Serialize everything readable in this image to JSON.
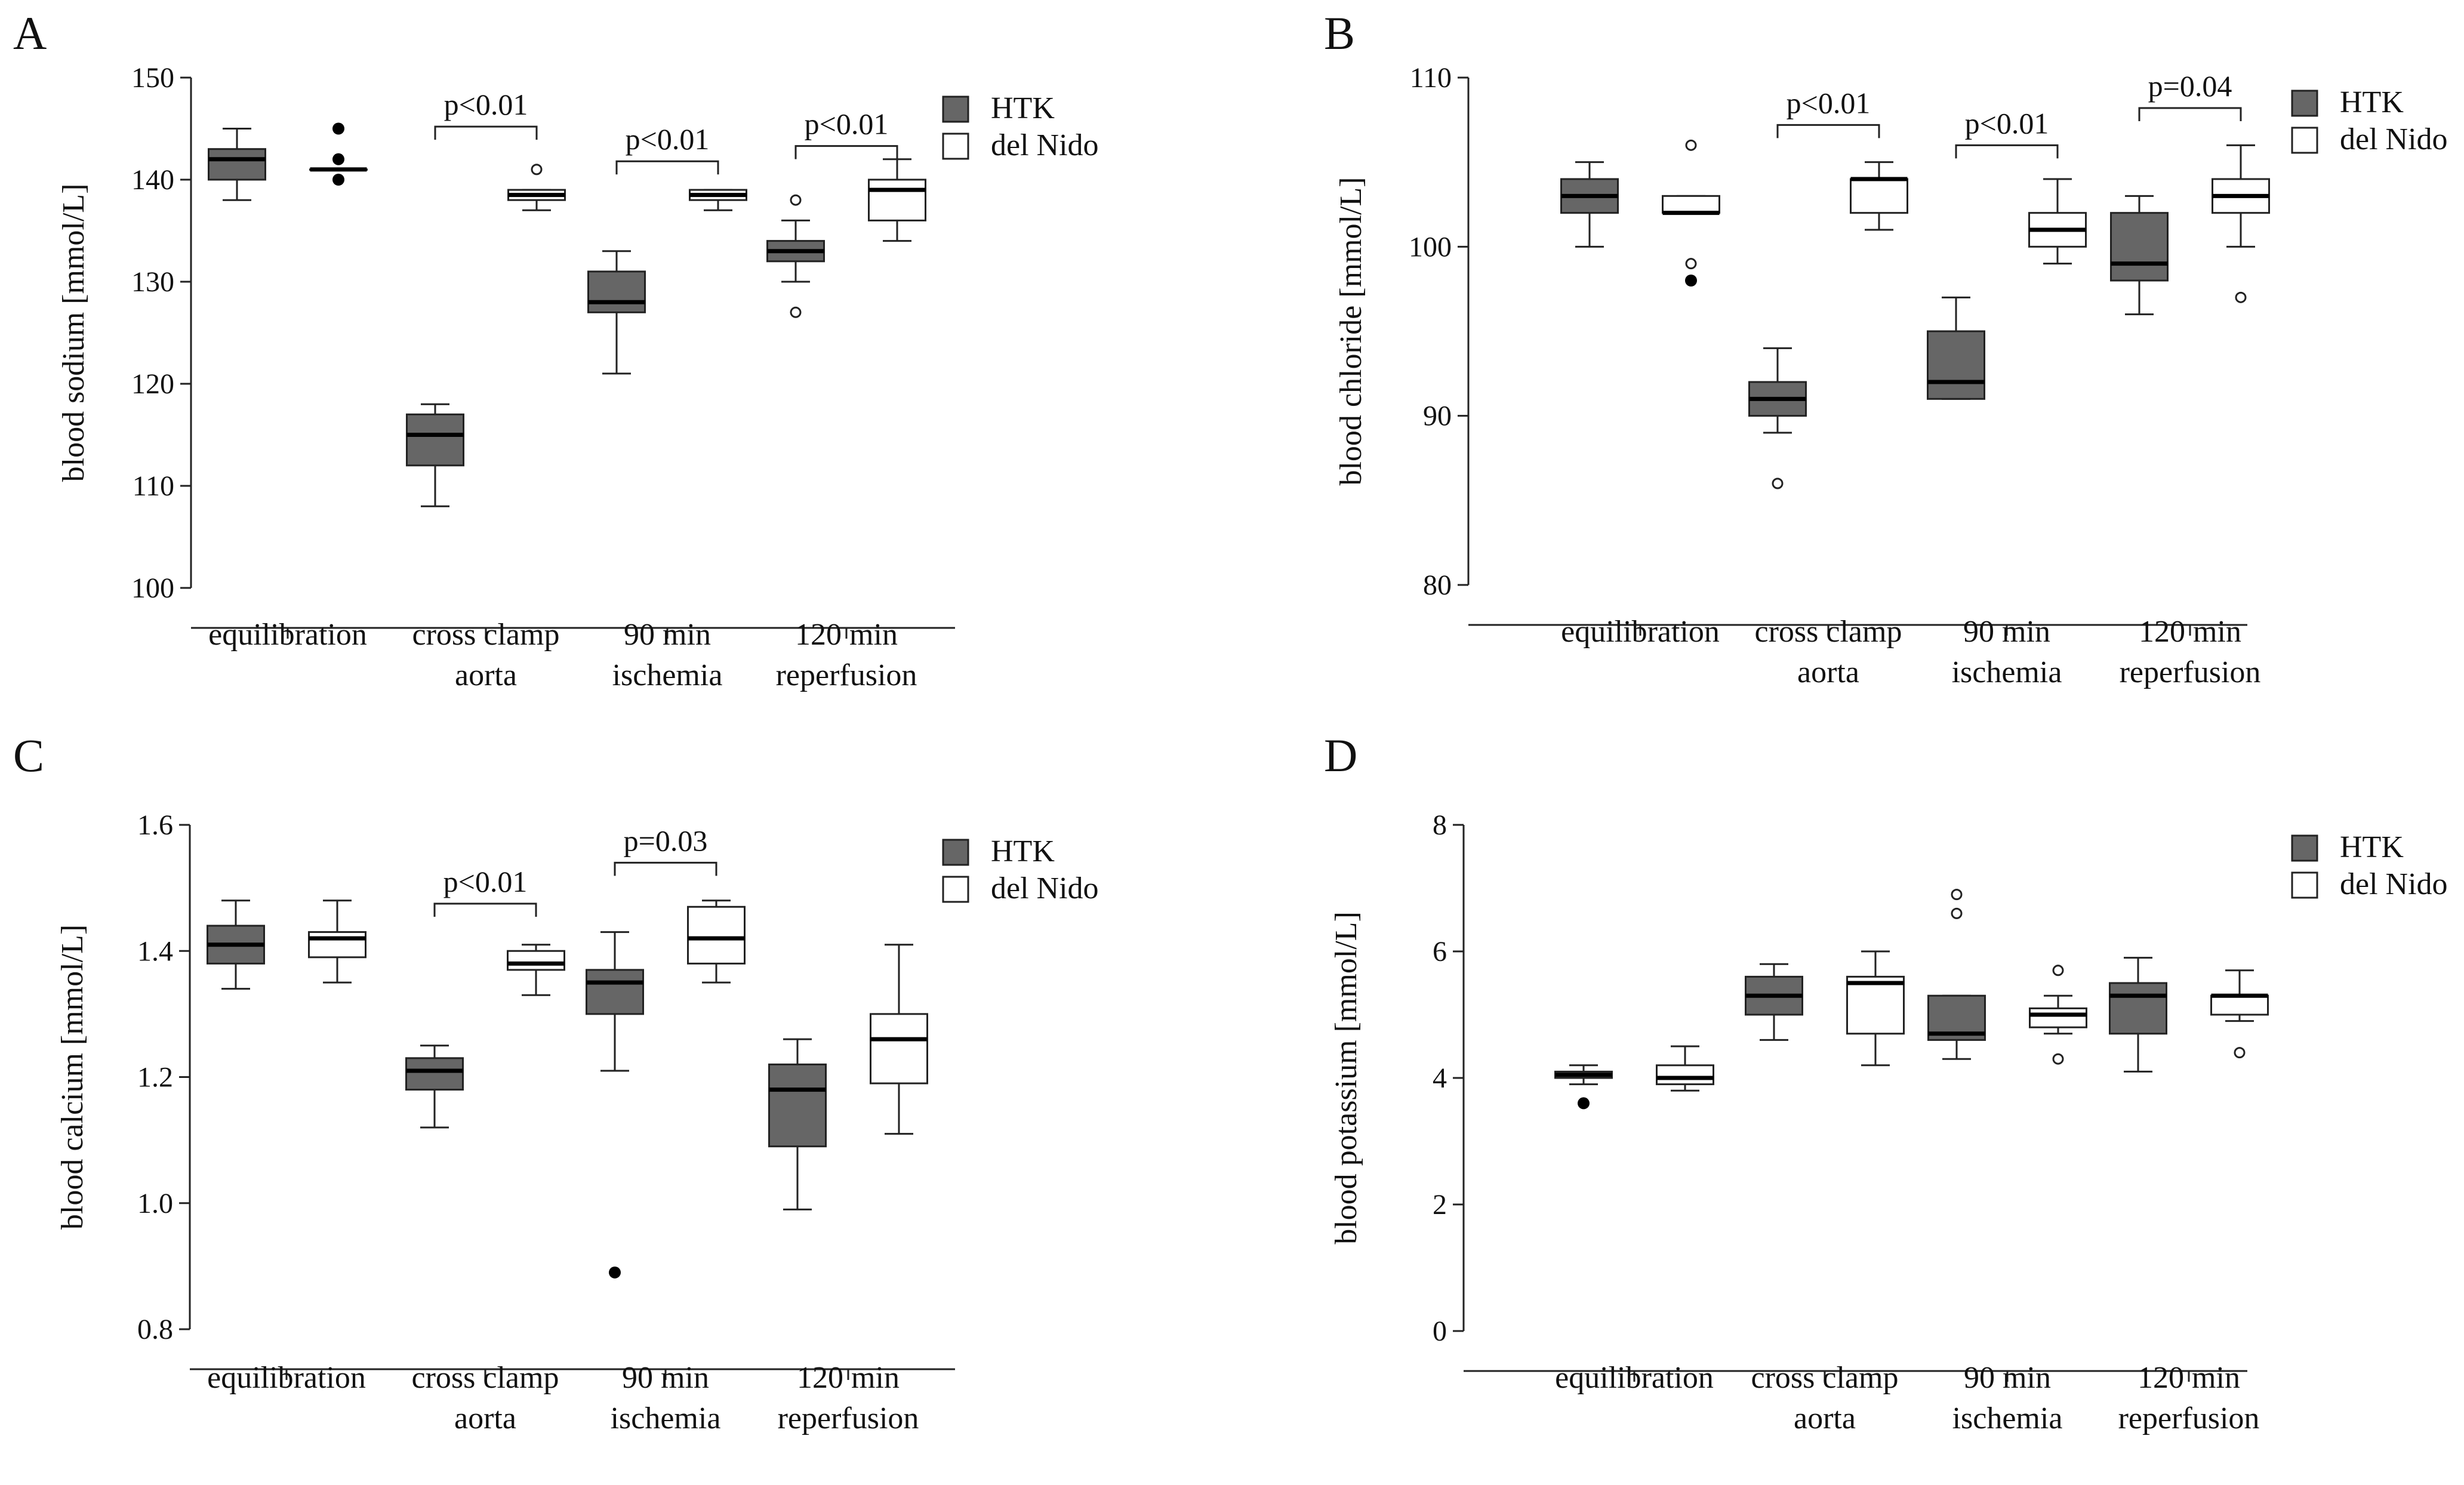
{
  "colors": {
    "HTK": "#666666",
    "delNido": "#ffffff",
    "stroke": "#222222"
  },
  "chart_data": [
    {
      "type": "box",
      "panel_label": "A",
      "ylabel": "blood sodium [mmol/L]",
      "ylim": [
        100,
        150
      ],
      "yticks": [
        "100",
        "110",
        "120",
        "130",
        "140",
        "150"
      ],
      "categories": [
        [
          "equilibration"
        ],
        [
          "cross clamp",
          "aorta"
        ],
        [
          "90 min",
          "ischemia"
        ],
        [
          "120 min",
          "reperfusion"
        ]
      ],
      "legend": [
        "HTK",
        "del Nido"
      ],
      "legend_position": "top-right",
      "series": [
        {
          "name": "HTK",
          "boxes": [
            {
              "q1": 140,
              "median": 142,
              "q3": 143,
              "wlo": 138,
              "whi": 145,
              "out": [],
              "ext": []
            },
            {
              "q1": 112,
              "median": 115,
              "q3": 117,
              "wlo": 108,
              "whi": 118,
              "out": [],
              "ext": []
            },
            {
              "q1": 127,
              "median": 128,
              "q3": 131,
              "wlo": 121,
              "whi": 133,
              "out": [],
              "ext": []
            },
            {
              "q1": 132,
              "median": 133,
              "q3": 134,
              "wlo": 130,
              "whi": 136,
              "out": [
                127,
                138
              ],
              "ext": []
            }
          ]
        },
        {
          "name": "del Nido",
          "boxes": [
            {
              "q1": 141,
              "median": 141,
              "q3": 141,
              "wlo": 141,
              "whi": 141,
              "out": [],
              "ext": [
                145,
                142,
                140
              ]
            },
            {
              "q1": 138,
              "median": 138.5,
              "q3": 139,
              "wlo": 137,
              "whi": 139,
              "out": [
                141
              ],
              "ext": []
            },
            {
              "q1": 138,
              "median": 138.5,
              "q3": 139,
              "wlo": 137,
              "whi": 139,
              "out": [],
              "ext": []
            },
            {
              "q1": 136,
              "median": 139,
              "q3": 140,
              "wlo": 134,
              "whi": 142,
              "out": [],
              "ext": []
            }
          ]
        }
      ],
      "significance": [
        {
          "group": 1,
          "label": "p<0.01",
          "y": 145.2
        },
        {
          "group": 2,
          "label": "p<0.01",
          "y": 141.8
        },
        {
          "group": 3,
          "label": "p<0.01",
          "y": 143.3
        }
      ]
    },
    {
      "type": "box",
      "panel_label": "B",
      "ylabel": "blood chloride [mmol/L]",
      "ylim": [
        80,
        110
      ],
      "yticks": [
        "80",
        "90",
        "100",
        "110"
      ],
      "categories": [
        [
          "equilibration"
        ],
        [
          "cross clamp",
          "aorta"
        ],
        [
          "90 min",
          "ischemia"
        ],
        [
          "120 min",
          "reperfusion"
        ]
      ],
      "legend": [
        "HTK",
        "del Nido"
      ],
      "legend_position": "top-right",
      "series": [
        {
          "name": "HTK",
          "boxes": [
            {
              "q1": 102,
              "median": 103,
              "q3": 104,
              "wlo": 100,
              "whi": 105,
              "out": [],
              "ext": []
            },
            {
              "q1": 90,
              "median": 91,
              "q3": 92,
              "wlo": 89,
              "whi": 94,
              "out": [
                86
              ],
              "ext": []
            },
            {
              "q1": 91,
              "median": 92,
              "q3": 95,
              "wlo": 91,
              "whi": 97,
              "out": [],
              "ext": []
            },
            {
              "q1": 98,
              "median": 99,
              "q3": 102,
              "wlo": 96,
              "whi": 103,
              "out": [],
              "ext": []
            }
          ]
        },
        {
          "name": "del Nido",
          "boxes": [
            {
              "q1": 102,
              "median": 102,
              "q3": 103,
              "wlo": 102,
              "whi": 103,
              "out": [
                106,
                99
              ],
              "ext": [
                98
              ]
            },
            {
              "q1": 102,
              "median": 104,
              "q3": 104,
              "wlo": 101,
              "whi": 105,
              "out": [],
              "ext": []
            },
            {
              "q1": 100,
              "median": 101,
              "q3": 102,
              "wlo": 99,
              "whi": 104,
              "out": [],
              "ext": []
            },
            {
              "q1": 102,
              "median": 103,
              "q3": 104,
              "wlo": 100,
              "whi": 106,
              "out": [
                97
              ],
              "ext": []
            }
          ]
        }
      ],
      "significance": [
        {
          "group": 1,
          "label": "p<0.01",
          "y": 107.2
        },
        {
          "group": 2,
          "label": "p<0.01",
          "y": 106.0
        },
        {
          "group": 3,
          "label": "p=0.04",
          "y": 108.2
        }
      ]
    },
    {
      "type": "box",
      "panel_label": "C",
      "ylabel": "blood calcium [mmol/L]",
      "ylim": [
        0.8,
        1.6
      ],
      "yticks": [
        "0.8",
        "1.0",
        "1.2",
        "1.4",
        "1.6"
      ],
      "categories": [
        [
          "equilibration"
        ],
        [
          "cross clamp",
          "aorta"
        ],
        [
          "90 min",
          "ischemia"
        ],
        [
          "120 min",
          "reperfusion"
        ]
      ],
      "legend": [
        "HTK",
        "del Nido"
      ],
      "legend_position": "top-right",
      "series": [
        {
          "name": "HTK",
          "boxes": [
            {
              "q1": 1.38,
              "median": 1.41,
              "q3": 1.44,
              "wlo": 1.34,
              "whi": 1.48,
              "out": [],
              "ext": []
            },
            {
              "q1": 1.18,
              "median": 1.21,
              "q3": 1.23,
              "wlo": 1.12,
              "whi": 1.25,
              "out": [],
              "ext": []
            },
            {
              "q1": 1.3,
              "median": 1.35,
              "q3": 1.37,
              "wlo": 1.21,
              "whi": 1.43,
              "out": [],
              "ext": [
                0.89
              ]
            },
            {
              "q1": 1.09,
              "median": 1.18,
              "q3": 1.22,
              "wlo": 0.99,
              "whi": 1.26,
              "out": [],
              "ext": []
            }
          ]
        },
        {
          "name": "del Nido",
          "boxes": [
            {
              "q1": 1.39,
              "median": 1.42,
              "q3": 1.43,
              "wlo": 1.35,
              "whi": 1.48,
              "out": [],
              "ext": []
            },
            {
              "q1": 1.37,
              "median": 1.38,
              "q3": 1.4,
              "wlo": 1.33,
              "whi": 1.41,
              "out": [],
              "ext": []
            },
            {
              "q1": 1.38,
              "median": 1.42,
              "q3": 1.47,
              "wlo": 1.35,
              "whi": 1.48,
              "out": [],
              "ext": []
            },
            {
              "q1": 1.19,
              "median": 1.26,
              "q3": 1.3,
              "wlo": 1.11,
              "whi": 1.41,
              "out": [],
              "ext": []
            }
          ]
        }
      ],
      "significance": [
        {
          "group": 1,
          "label": "p<0.01",
          "y": 1.475
        },
        {
          "group": 2,
          "label": "p=0.03",
          "y": 1.54
        }
      ]
    },
    {
      "type": "box",
      "panel_label": "D",
      "ylabel": "blood potassium [mmol/L]",
      "ylim": [
        0,
        8
      ],
      "yticks": [
        "0",
        "2",
        "4",
        "6",
        "8"
      ],
      "categories": [
        [
          "equilibration"
        ],
        [
          "cross clamp",
          "aorta"
        ],
        [
          "90 min",
          "ischemia"
        ],
        [
          "120 min",
          "reperfusion"
        ]
      ],
      "legend": [
        "HTK",
        "del Nido"
      ],
      "legend_position": "top-right",
      "series": [
        {
          "name": "HTK",
          "boxes": [
            {
              "q1": 4.0,
              "median": 4.05,
              "q3": 4.1,
              "wlo": 3.9,
              "whi": 4.2,
              "out": [],
              "ext": [
                3.6
              ]
            },
            {
              "q1": 5.0,
              "median": 5.3,
              "q3": 5.6,
              "wlo": 4.6,
              "whi": 5.8,
              "out": [],
              "ext": []
            },
            {
              "q1": 4.6,
              "median": 4.7,
              "q3": 5.3,
              "wlo": 4.3,
              "whi": 5.3,
              "out": [
                6.9,
                6.6
              ],
              "ext": []
            },
            {
              "q1": 4.7,
              "median": 5.3,
              "q3": 5.5,
              "wlo": 4.1,
              "whi": 5.9,
              "out": [],
              "ext": []
            }
          ]
        },
        {
          "name": "del Nido",
          "boxes": [
            {
              "q1": 3.9,
              "median": 4.0,
              "q3": 4.2,
              "wlo": 3.8,
              "whi": 4.5,
              "out": [],
              "ext": []
            },
            {
              "q1": 4.7,
              "median": 5.5,
              "q3": 5.6,
              "wlo": 4.2,
              "whi": 6.0,
              "out": [],
              "ext": []
            },
            {
              "q1": 4.8,
              "median": 5.0,
              "q3": 5.1,
              "wlo": 4.7,
              "whi": 5.3,
              "out": [
                5.7,
                4.3
              ],
              "ext": []
            },
            {
              "q1": 5.0,
              "median": 5.3,
              "q3": 5.3,
              "wlo": 4.9,
              "whi": 5.7,
              "out": [
                4.4
              ],
              "ext": []
            }
          ]
        }
      ],
      "significance": []
    }
  ]
}
